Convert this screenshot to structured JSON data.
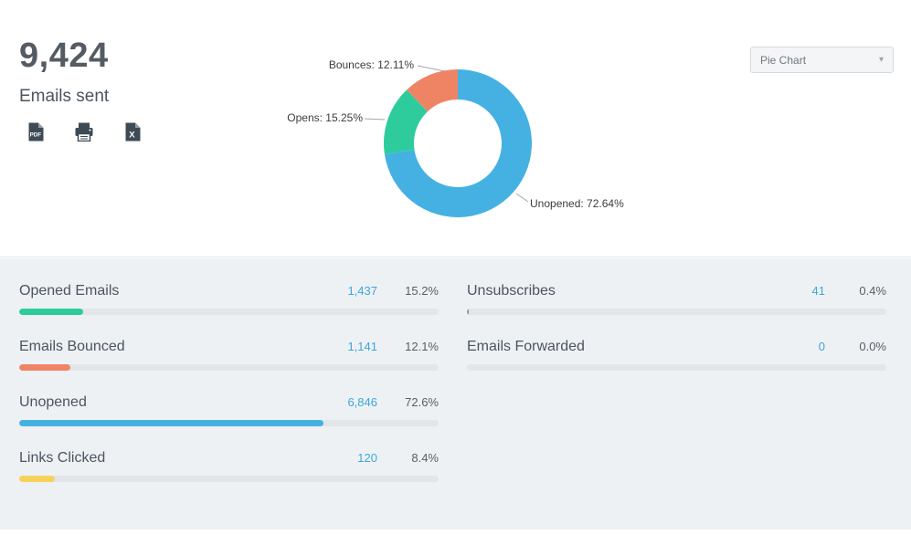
{
  "header": {
    "total": "9,424",
    "subtitle": "Emails sent",
    "export_icons": [
      {
        "name": "pdf-export-icon"
      },
      {
        "name": "print-icon"
      },
      {
        "name": "excel-export-icon"
      }
    ],
    "chart_type_dropdown": {
      "value": "Pie Chart",
      "icon": "chevron-down-icon"
    }
  },
  "chart_data": {
    "type": "pie",
    "donut": true,
    "title": "",
    "legend_position": "callout-labels",
    "segments": [
      {
        "name": "Unopened",
        "value": 72.64,
        "color": "#45b1e3",
        "label": "Unopened: 72.64%"
      },
      {
        "name": "Opens",
        "value": 15.25,
        "color": "#2ecc9c",
        "label": "Opens: 15.25%"
      },
      {
        "name": "Bounces",
        "value": 12.11,
        "color": "#ef8465",
        "label": "Bounces: 12.11%"
      }
    ]
  },
  "stats": {
    "left": [
      {
        "label": "Opened Emails",
        "value": "1,437",
        "pct": "15.2%",
        "pct_num": 15.2,
        "color": "#2ecc9c"
      },
      {
        "label": "Emails Bounced",
        "value": "1,141",
        "pct": "12.1%",
        "pct_num": 12.1,
        "color": "#ef8465"
      },
      {
        "label": "Unopened",
        "value": "6,846",
        "pct": "72.6%",
        "pct_num": 72.6,
        "color": "#45b1e3"
      },
      {
        "label": "Links Clicked",
        "value": "120",
        "pct": "8.4%",
        "pct_num": 8.4,
        "color": "#f5d25c"
      }
    ],
    "right": [
      {
        "label": "Unsubscribes",
        "value": "41",
        "pct": "0.4%",
        "pct_num": 0.4,
        "color": "#8e979e"
      },
      {
        "label": "Emails Forwarded",
        "value": "0",
        "pct": "0.0%",
        "pct_num": 0.0,
        "color": "#8e979e"
      }
    ]
  }
}
